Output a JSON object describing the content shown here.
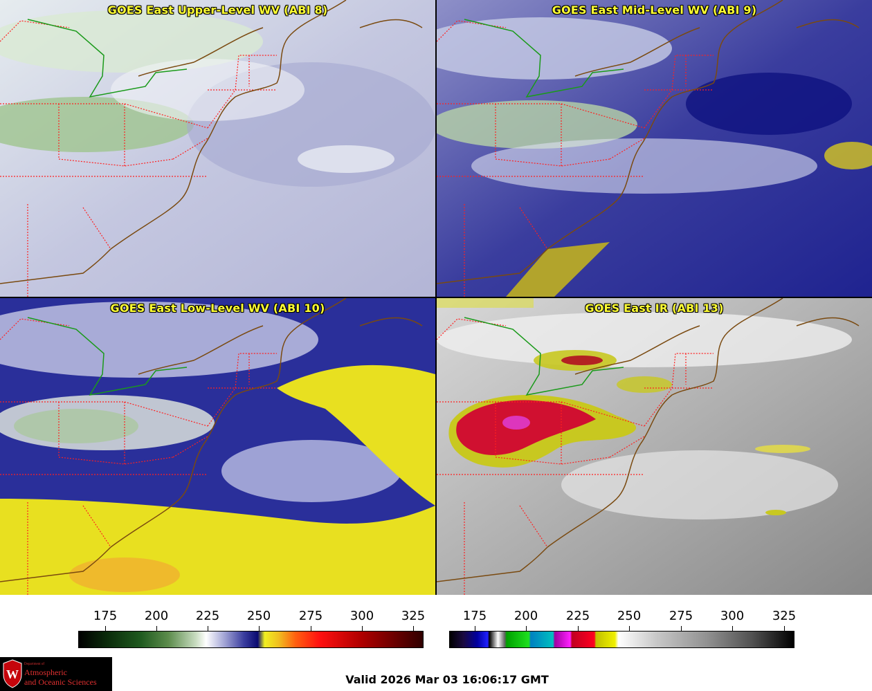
{
  "panels": [
    {
      "title": "GOES East Upper-Level WV (ABI 8)"
    },
    {
      "title": "GOES East Mid-Level WV (ABI 9)"
    },
    {
      "title": "GOES East Low-Level WV (ABI 10)"
    },
    {
      "title": "GOES East IR (ABI 13)"
    }
  ],
  "colorbars": [
    {
      "ticks": [
        "175",
        "200",
        "225",
        "250",
        "275",
        "300",
        "325"
      ]
    },
    {
      "ticks": [
        "175",
        "200",
        "225",
        "250",
        "275",
        "300",
        "325"
      ]
    }
  ],
  "logo": {
    "dept": "Department of",
    "line1": "Atmospheric",
    "line2": "and Oceanic Sciences"
  },
  "valid_time": "Valid 2026 Mar 03 16:06:17 GMT",
  "colors": {
    "title": "#ffff33",
    "state_border": "#ff2020",
    "coastline": "#7a4a10",
    "lake_line": "#1a9a1a"
  }
}
